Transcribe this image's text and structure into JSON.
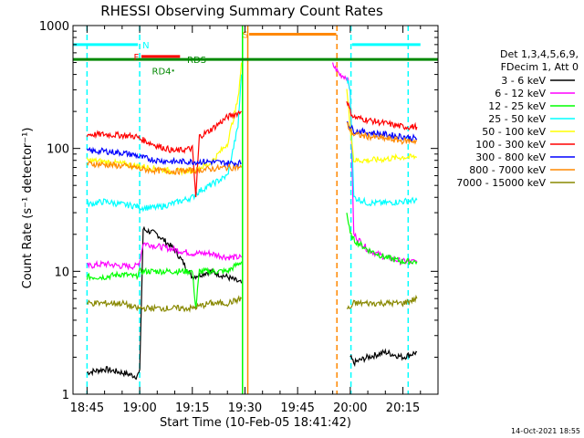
{
  "chart_data": {
    "type": "line",
    "title": "RHESSI Observing Summary Count Rates",
    "xlabel": "Start Time (10-Feb-05 18:41:42)",
    "ylabel": "Count Rate (s⁻¹ detector⁻¹)",
    "yscale": "log",
    "xlim_min": [
      -4.0,
      100.0
    ],
    "ylim": [
      1,
      1000
    ],
    "x_ticks": [
      {
        "t": 0,
        "label": "18:45"
      },
      {
        "t": 15,
        "label": "19:00"
      },
      {
        "t": 30,
        "label": "19:15"
      },
      {
        "t": 45,
        "label": "19:30"
      },
      {
        "t": 60,
        "label": "19:45"
      },
      {
        "t": 75,
        "label": "20:00"
      },
      {
        "t": 90,
        "label": "20:15"
      }
    ],
    "y_ticks": [
      {
        "v": 1,
        "label": "1"
      },
      {
        "v": 10,
        "label": "10"
      },
      {
        "v": 100,
        "label": "100"
      },
      {
        "v": 1000,
        "label": "1000"
      }
    ],
    "legend_header": [
      "Det 1,3,4,5,6,9,",
      "FDecim 1, Att 0"
    ],
    "legend_placement": "right",
    "series": [
      {
        "name": "3 - 6 keV",
        "color": "#000000",
        "segments": [
          {
            "x": [
              0,
              5,
              10,
              14,
              15,
              16,
              20,
              25,
              30,
              35,
              40,
              44
            ],
            "y": [
              1.5,
              1.6,
              1.5,
              1.4,
              1.5,
              22,
              20,
              15,
              9,
              10,
              9,
              8
            ]
          },
          {
            "x": [
              75,
              76,
              80,
              85,
              90,
              94
            ],
            "y": [
              2,
              1.8,
              2,
              2.2,
              2,
              2.2
            ]
          }
        ]
      },
      {
        "name": "6 - 12 keV",
        "color": "#ff00ff",
        "segments": [
          {
            "x": [
              0,
              5,
              10,
              14,
              15,
              16,
              20,
              25,
              30,
              35,
              40,
              44
            ],
            "y": [
              11,
              11.5,
              11,
              11,
              12,
              17,
              16,
              15,
              14,
              14,
              13,
              13
            ]
          },
          {
            "x": [
              70,
              72,
              74,
              75,
              76,
              80,
              85,
              90,
              94
            ],
            "y": [
              480,
              400,
              380,
              300,
              20,
              15,
              13,
              12,
              12
            ]
          }
        ]
      },
      {
        "name": "12 - 25 keV",
        "color": "#00ff00",
        "segments": [
          {
            "x": [
              0,
              5,
              10,
              14,
              15,
              20,
              25,
              30,
              31,
              32,
              35,
              40,
              44
            ],
            "y": [
              9,
              9,
              9.5,
              9,
              10,
              10,
              10,
              10,
              5,
              10,
              10,
              10,
              12
            ]
          },
          {
            "x": [
              74,
              75,
              76,
              80,
              85,
              90,
              94
            ],
            "y": [
              30,
              20,
              18,
              15,
              13,
              12,
              12
            ]
          }
        ]
      },
      {
        "name": "25 - 50 keV",
        "color": "#00ffff",
        "segments": [
          {
            "x": [
              0,
              5,
              10,
              14,
              15,
              20,
              25,
              30,
              32,
              35,
              40,
              43,
              44
            ],
            "y": [
              35,
              37,
              35,
              34,
              33,
              33,
              36,
              40,
              45,
              50,
              60,
              150,
              400
            ]
          },
          {
            "x": [
              74,
              75,
              76,
              80,
              85,
              90,
              94
            ],
            "y": [
              380,
              300,
              40,
              36,
              36,
              37,
              38
            ]
          }
        ]
      },
      {
        "name": "50 - 100 keV",
        "color": "#ffff00",
        "segments": [
          {
            "x": [
              0,
              5,
              10,
              14,
              15,
              20,
              25,
              30,
              35,
              40,
              43,
              44
            ],
            "y": [
              80,
              78,
              75,
              72,
              72,
              68,
              65,
              66,
              75,
              110,
              250,
              500
            ]
          },
          {
            "x": [
              74,
              75,
              76,
              80,
              85,
              90,
              94
            ],
            "y": [
              300,
              150,
              80,
              80,
              82,
              85,
              85
            ]
          }
        ]
      },
      {
        "name": "100 - 300 keV",
        "color": "#ff0000",
        "segments": [
          {
            "x": [
              0,
              5,
              10,
              14,
              15,
              20,
              25,
              30,
              31,
              32,
              35,
              40,
              44
            ],
            "y": [
              130,
              130,
              128,
              125,
              120,
              105,
              95,
              100,
              40,
              125,
              140,
              180,
              200
            ]
          },
          {
            "x": [
              74,
              75,
              76,
              80,
              85,
              90,
              94
            ],
            "y": [
              250,
              200,
              180,
              170,
              160,
              150,
              150
            ]
          }
        ]
      },
      {
        "name": "300 - 800 keV",
        "color": "#0000ff",
        "segments": [
          {
            "x": [
              0,
              5,
              10,
              14,
              15,
              20,
              25,
              30,
              35,
              40,
              44
            ],
            "y": [
              95,
              95,
              92,
              88,
              85,
              80,
              78,
              78,
              78,
              76,
              76
            ]
          },
          {
            "x": [
              74,
              75,
              76,
              80,
              85,
              90,
              94
            ],
            "y": [
              170,
              150,
              140,
              135,
              130,
              125,
              120
            ]
          }
        ]
      },
      {
        "name": "800 - 7000 keV",
        "color": "#ff8800",
        "segments": [
          {
            "x": [
              0,
              5,
              10,
              14,
              15,
              20,
              25,
              30,
              35,
              40,
              44
            ],
            "y": [
              75,
              74,
              72,
              70,
              68,
              66,
              65,
              66,
              68,
              70,
              70
            ]
          },
          {
            "x": [
              74,
              75,
              76,
              80,
              85,
              90,
              94
            ],
            "y": [
              160,
              140,
              130,
              125,
              120,
              115,
              115
            ]
          }
        ]
      },
      {
        "name": "7000 - 15000 keV",
        "color": "#888800",
        "segments": [
          {
            "x": [
              0,
              5,
              10,
              14,
              15,
              20,
              25,
              30,
              35,
              40,
              44
            ],
            "y": [
              5.5,
              5.5,
              5.5,
              5,
              5,
              5,
              5,
              5,
              5.5,
              5.5,
              6
            ]
          },
          {
            "x": [
              74,
              75,
              76,
              80,
              85,
              90,
              94
            ],
            "y": [
              5,
              5,
              5.5,
              5.5,
              5.5,
              5.5,
              6
            ]
          }
        ]
      }
    ],
    "vlines": [
      {
        "t": 0.0,
        "color": "#00ffff",
        "style": "dashed"
      },
      {
        "t": 15.0,
        "color": "#00ffff",
        "style": "dashed"
      },
      {
        "t": 44.3,
        "color": "#00ff00",
        "style": "solid"
      },
      {
        "t": 45.8,
        "color": "#ff8800",
        "style": "solid"
      },
      {
        "t": 71.2,
        "color": "#ff8800",
        "style": "dashed"
      },
      {
        "t": 75.2,
        "color": "#00ffff",
        "style": "dashed"
      },
      {
        "t": 91.5,
        "color": "#00ffff",
        "style": "dashed"
      }
    ],
    "flag_bars": [
      {
        "label": "N",
        "color": "#00ffff",
        "segments": [
          [
            -4,
            14.5
          ],
          [
            75.5,
            95
          ]
        ],
        "level": 700
      },
      {
        "label": "F",
        "color": "#ff0000",
        "segments": [
          [
            15.5,
            26.5
          ]
        ],
        "level": 560
      },
      {
        "label": "S",
        "color": "#ff8800",
        "segments": [
          [
            46.2,
            71.0
          ]
        ],
        "level": 850
      },
      {
        "label": "RD4",
        "color": "#008800",
        "segments": [],
        "level": 430
      },
      {
        "label": "RDS",
        "color": "#008800",
        "segments": [
          [
            -4,
            100
          ]
        ],
        "level": 530
      }
    ],
    "timestamp": "14-Oct-2021 18:55"
  }
}
